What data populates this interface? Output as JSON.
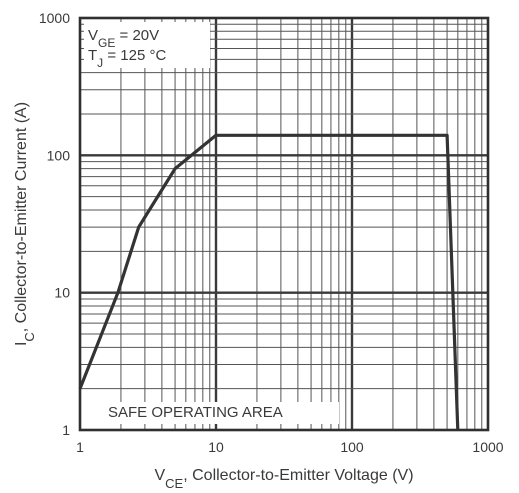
{
  "chart_data": {
    "type": "line",
    "xscale": "log",
    "yscale": "log",
    "xlim": [
      1,
      1000
    ],
    "ylim": [
      1,
      1000
    ],
    "grid": true,
    "x_ticks": [
      {
        "value": 1,
        "label": "1"
      },
      {
        "value": 10,
        "label": "10"
      },
      {
        "value": 100,
        "label": "100"
      },
      {
        "value": 1000,
        "label": "1000"
      }
    ],
    "y_ticks": [
      {
        "value": 1,
        "label": "1"
      },
      {
        "value": 10,
        "label": "10"
      },
      {
        "value": 100,
        "label": "100"
      },
      {
        "value": 1000,
        "label": "1000"
      }
    ],
    "xlabel": {
      "main": "V",
      "sub": "CE",
      "rest": ", Collector-to-Emitter Voltage (V)"
    },
    "ylabel": {
      "main": "I",
      "sub": "C",
      "rest": ",  Collector-to-Emitter Current (A)"
    },
    "annotations": {
      "vge": {
        "main": "V",
        "sub": "GE",
        "rest": " = 20V"
      },
      "tj": {
        "main": "T",
        "sub": "J",
        "rest": "    = 125 °C"
      },
      "area": "SAFE OPERATING AREA"
    },
    "series": [
      {
        "x": [
          1,
          1.9,
          2.7,
          5,
          10,
          500,
          600
        ],
        "y": [
          2,
          10,
          30,
          80,
          140,
          140,
          1
        ]
      }
    ],
    "colors": {
      "axes": "#2f2f2f",
      "major_grid": "#3a3a3a",
      "minor_grid": "#555555",
      "curve": "#333333",
      "label_background": "#ffffff"
    }
  }
}
